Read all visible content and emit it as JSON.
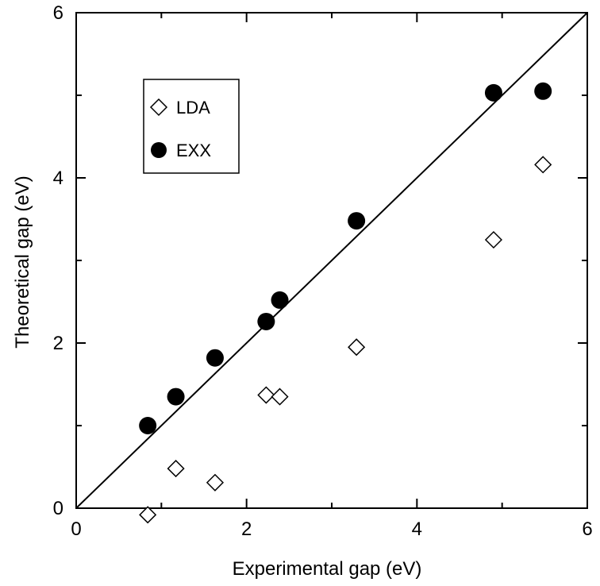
{
  "chart_data": {
    "type": "scatter",
    "xlabel": "Experimental gap (eV)",
    "ylabel": "Theoretical gap (eV)",
    "xlim": [
      0,
      6
    ],
    "ylim": [
      0,
      6
    ],
    "x_ticks": [
      "0",
      "2",
      "4",
      "6"
    ],
    "y_ticks": [
      "0",
      "2",
      "4",
      "6"
    ],
    "grid": false,
    "legend_position": "upper-left",
    "reference_line": {
      "from": [
        0,
        0
      ],
      "to": [
        6,
        6
      ]
    },
    "series": [
      {
        "name": "LDA",
        "marker": "open-diamond",
        "x": [
          0.84,
          1.17,
          1.63,
          2.23,
          2.39,
          3.29,
          4.9,
          5.48
        ],
        "y": [
          -0.08,
          0.48,
          0.31,
          1.37,
          1.35,
          1.95,
          3.25,
          4.16
        ]
      },
      {
        "name": "EXX",
        "marker": "filled-circle",
        "x": [
          0.84,
          1.17,
          1.63,
          2.23,
          2.39,
          3.29,
          4.9,
          5.48
        ],
        "y": [
          1.0,
          1.35,
          1.82,
          2.26,
          2.52,
          3.48,
          5.03,
          5.05
        ]
      }
    ]
  }
}
